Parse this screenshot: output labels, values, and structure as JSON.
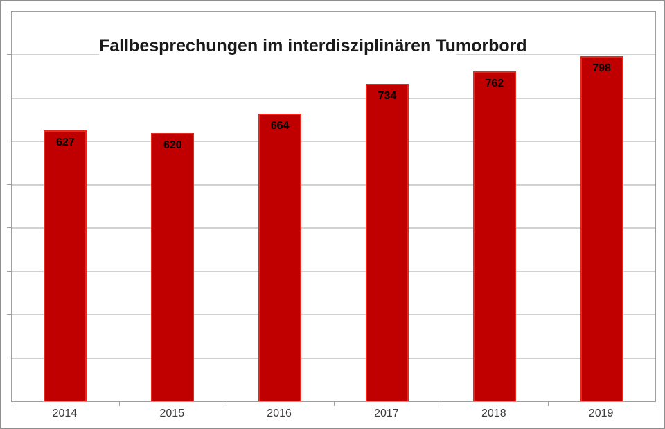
{
  "chart_data": {
    "type": "bar",
    "title": "Fallbesprechungen im interdisziplinären Tumorbord",
    "categories": [
      "2014",
      "2015",
      "2016",
      "2017",
      "2018",
      "2019"
    ],
    "values": [
      627,
      620,
      664,
      734,
      762,
      798
    ],
    "data_labels": [
      "627",
      "620",
      "664",
      "734",
      "762",
      "798"
    ],
    "xlabel": "",
    "ylabel": "",
    "ylim": [
      0,
      900
    ],
    "gridline_step": 100,
    "grid": true,
    "legend": false,
    "y_tick_labels_visible": false,
    "colors": {
      "bar_fill": "#c00000",
      "bar_border": "#e8291c",
      "gridline": "#d2d2d2",
      "axis": "#9f9f9f",
      "data_label": "#000000",
      "axis_label": "#3d3d3d",
      "title": "#1a1a1a",
      "background": "#ffffff",
      "frame_border": "#8e8e8e"
    }
  }
}
